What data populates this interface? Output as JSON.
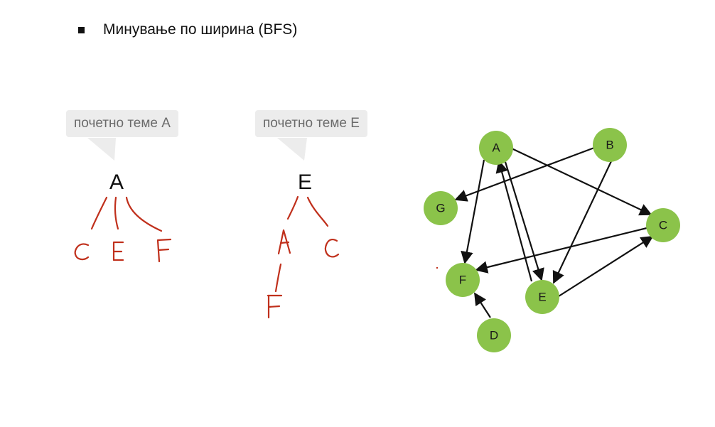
{
  "header": {
    "bullet_text": "Минување по ширина (BFS)"
  },
  "trees": [
    {
      "callout": "почетно теме A",
      "root": "A",
      "children": [
        "C",
        "E",
        "F"
      ]
    },
    {
      "callout": "почетно теме E",
      "root": "E",
      "children": [
        "A",
        "C"
      ],
      "grandchild": "F"
    }
  ],
  "graph": {
    "node_color": "#8bc34a",
    "nodes": [
      "A",
      "B",
      "C",
      "D",
      "E",
      "F",
      "G"
    ],
    "edges": [
      [
        "A",
        "C"
      ],
      [
        "A",
        "F"
      ],
      [
        "A",
        "E"
      ],
      [
        "E",
        "A"
      ],
      [
        "B",
        "G"
      ],
      [
        "B",
        "E"
      ],
      [
        "C",
        "F"
      ],
      [
        "E",
        "C"
      ],
      [
        "D",
        "F"
      ]
    ]
  },
  "colors": {
    "handwriting": "#c0301c",
    "callout_bg": "#ececec",
    "node": "#8bc34a"
  }
}
